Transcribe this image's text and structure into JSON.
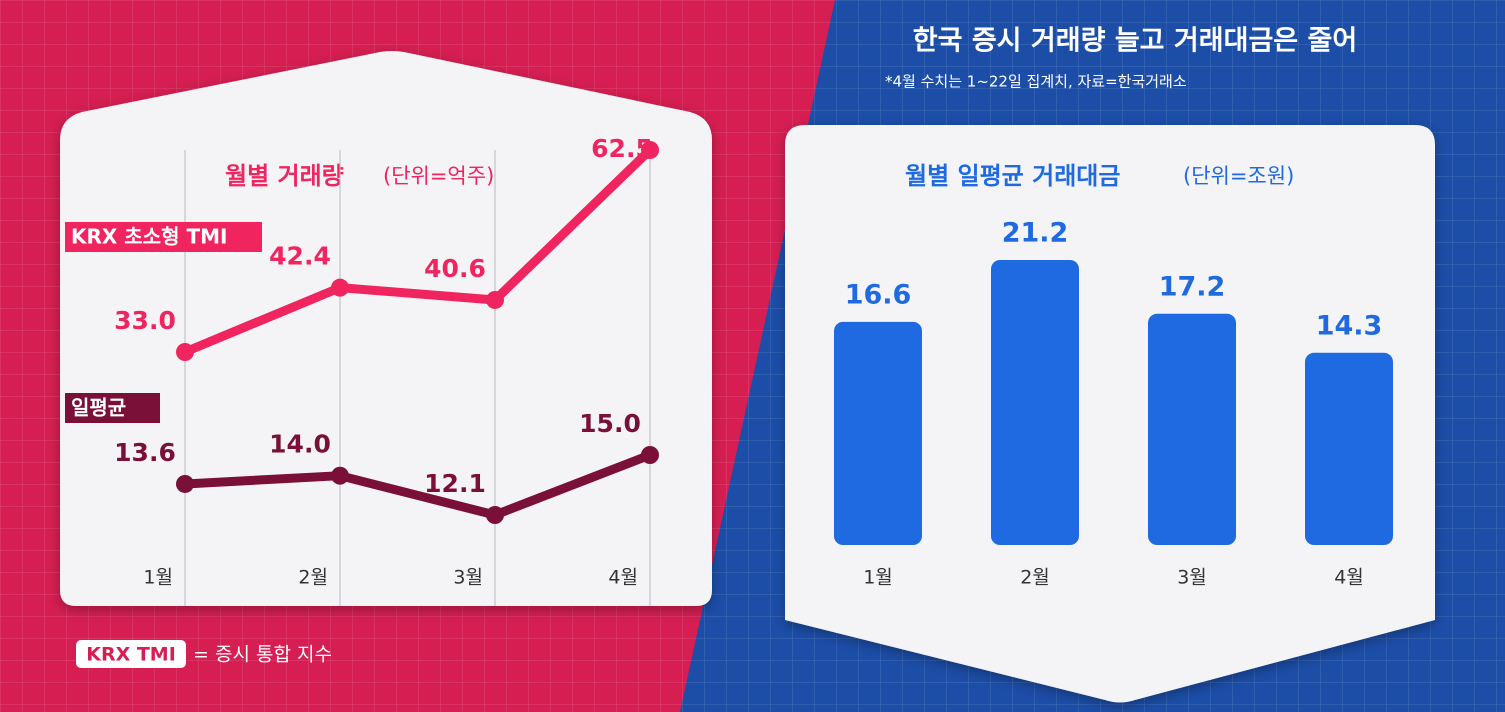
{
  "header": {
    "title": "한국 증시 거래량 늘고 거래대금은 줄어",
    "note": "*4월 수치는 1~22일 집계치, 자료=한국거래소"
  },
  "footnote": {
    "term": "KRX TMI",
    "definition": "= 증시 통합 지수"
  },
  "chart_data": [
    {
      "type": "line",
      "title": "월별 거래량",
      "unit": "(단위=억주)",
      "categories": [
        "1월",
        "2월",
        "3월",
        "4월"
      ],
      "series": [
        {
          "name": "KRX 초소형 TMI",
          "color": "#f0245e",
          "values": [
            33.0,
            42.4,
            40.6,
            62.5
          ],
          "value_labels": [
            "33.0",
            "42.4",
            "40.6",
            "62.5"
          ]
        },
        {
          "name": "일평균",
          "color": "#7a1038",
          "values": [
            13.6,
            14.0,
            12.1,
            15.0
          ],
          "value_labels": [
            "13.6",
            "14.0",
            "12.1",
            "15.0"
          ]
        }
      ]
    },
    {
      "type": "bar",
      "title": "월별 일평균 거래대금",
      "unit": "(단위=조원)",
      "categories": [
        "1월",
        "2월",
        "3월",
        "4월"
      ],
      "color": "#1f6ae0",
      "values": [
        16.6,
        21.2,
        17.2,
        14.3
      ]
    }
  ]
}
